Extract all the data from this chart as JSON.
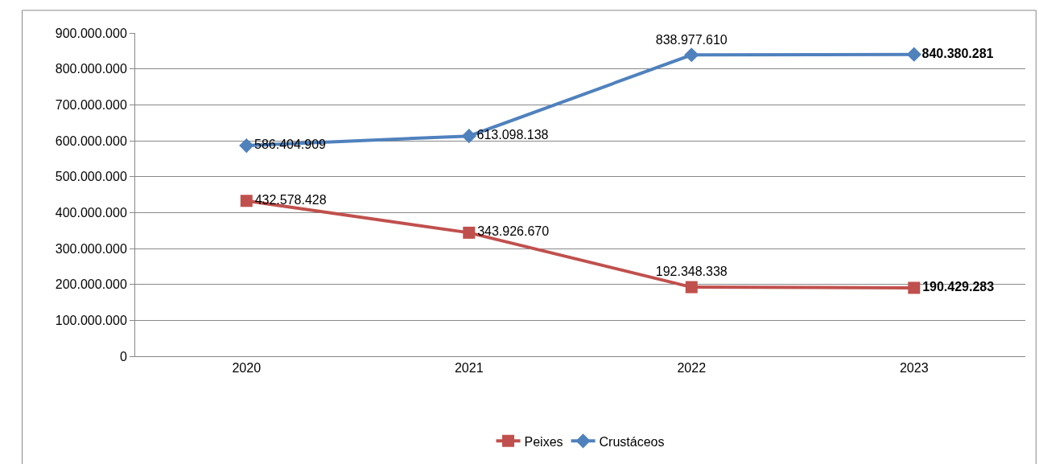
{
  "chart_data": {
    "type": "line",
    "categories": [
      "2020",
      "2021",
      "2022",
      "2023"
    ],
    "series": [
      {
        "name": "Peixes",
        "color": "#c0504d",
        "marker": "square",
        "values": [
          432578428,
          343926670,
          192348338,
          190429283
        ],
        "value_labels": [
          "432.578.428",
          "343.926.670",
          "192.348.338",
          "190.429.283"
        ]
      },
      {
        "name": "Crustáceos",
        "color": "#4f81bd",
        "marker": "diamond",
        "values": [
          586404909,
          613098138,
          838977610,
          840380281
        ],
        "value_labels": [
          "586.404.909",
          "613.098.138",
          "838.977.610",
          "840.380.281"
        ]
      }
    ],
    "ylim": [
      0,
      900000000
    ],
    "yticks": [
      {
        "value": 0,
        "label": "0"
      },
      {
        "value": 100000000,
        "label": "100.000.000"
      },
      {
        "value": 200000000,
        "label": "200.000.000"
      },
      {
        "value": 300000000,
        "label": "300.000.000"
      },
      {
        "value": 400000000,
        "label": "400.000.000"
      },
      {
        "value": 500000000,
        "label": "500.000.000"
      },
      {
        "value": 600000000,
        "label": "600.000.000"
      },
      {
        "value": 700000000,
        "label": "700.000.000"
      },
      {
        "value": 800000000,
        "label": "800.000.000"
      },
      {
        "value": 900000000,
        "label": "900.000.000"
      }
    ],
    "grid": "y",
    "legend": "bottom",
    "line_style": "solid"
  }
}
